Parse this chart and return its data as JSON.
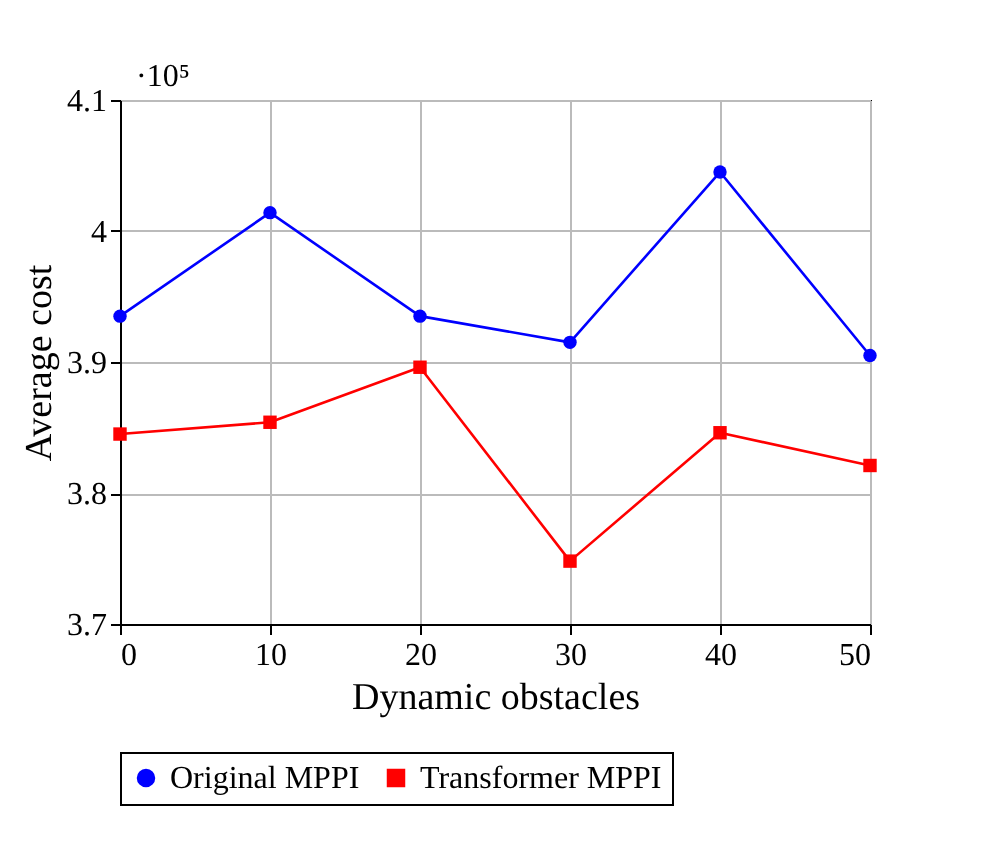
{
  "chart_data": {
    "type": "line",
    "xlabel": "Dynamic obstacles",
    "ylabel": "Average cost",
    "x": [
      0,
      10,
      20,
      30,
      40,
      50
    ],
    "series": [
      {
        "name": "Original MPPI",
        "color": "#0000ff",
        "marker": "circle",
        "values": [
          3.935,
          4.014,
          3.935,
          3.915,
          4.045,
          3.905
        ]
      },
      {
        "name": "Transformer MPPI",
        "color": "#ff0000",
        "marker": "square",
        "values": [
          3.845,
          3.854,
          3.896,
          3.748,
          3.846,
          3.821
        ]
      }
    ],
    "xlim": [
      0,
      50
    ],
    "xticks": [
      0,
      10,
      20,
      30,
      40,
      50
    ],
    "ylim": [
      3.7,
      4.1
    ],
    "yticks": [
      3.7,
      3.8,
      3.9,
      4,
      4.1
    ],
    "annotations": [
      "·10⁵"
    ],
    "grid": true,
    "legend": "bottom",
    "line_style": "solid"
  }
}
